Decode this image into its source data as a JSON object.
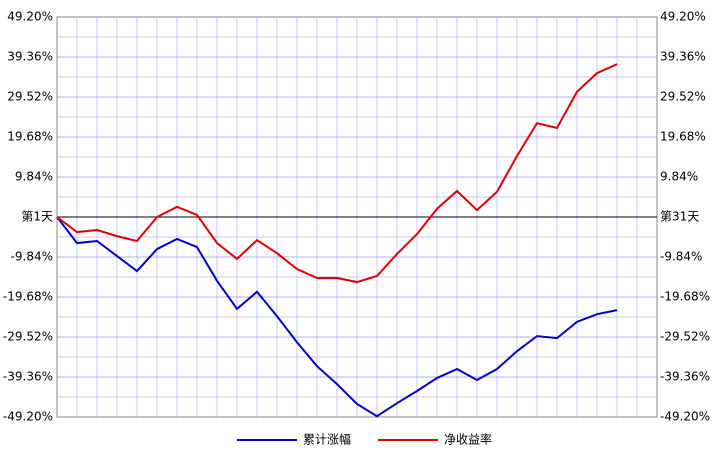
{
  "chart_data": {
    "type": "line",
    "categories": [
      "第1天",
      null,
      null,
      null,
      null,
      null,
      null,
      null,
      null,
      null,
      null,
      null,
      null,
      null,
      null,
      null,
      null,
      null,
      null,
      null,
      null,
      null,
      null,
      null,
      null,
      null,
      null,
      null,
      null,
      null,
      "第31天"
    ],
    "series": [
      {
        "name": "累计涨幅",
        "color": "#0000cc",
        "values": [
          0,
          -6.4,
          -5.9,
          -9.6,
          -13.3,
          -7.9,
          -5.4,
          -7.4,
          -15.7,
          -22.6,
          -18.4,
          -24.4,
          -30.8,
          -36.7,
          -41.1,
          -46.0,
          -49.0,
          -45.8,
          -42.8,
          -39.6,
          -37.4,
          -40.1,
          -37.4,
          -33.0,
          -29.3,
          -29.8,
          -25.8,
          -23.9,
          -22.9,
          null,
          null
        ]
      },
      {
        "name": "净收益率",
        "color": "#dd0000",
        "values": [
          0,
          -3.7,
          -3.2,
          -4.7,
          -5.9,
          0,
          2.5,
          0.5,
          -6.4,
          -10.3,
          -5.7,
          -8.9,
          -12.8,
          -15.0,
          -15.0,
          -16.0,
          -14.5,
          -9.1,
          -4.2,
          2.0,
          6.4,
          1.7,
          6.2,
          15.0,
          23.1,
          21.9,
          30.8,
          35.4,
          37.6,
          null,
          null
        ]
      }
    ],
    "ylim": [
      -49.2,
      49.2
    ],
    "yticks": [
      {
        "value": -49.2,
        "label": "-49.20%"
      },
      {
        "value": -39.36,
        "label": "-39.36%"
      },
      {
        "value": -29.52,
        "label": "-29.52%"
      },
      {
        "value": -19.68,
        "label": "-19.68%"
      },
      {
        "value": -9.84,
        "label": "-9.84%"
      },
      {
        "value": 9.84,
        "label": "9.84%"
      },
      {
        "value": 19.68,
        "label": "19.68%"
      },
      {
        "value": 29.52,
        "label": "29.52%"
      },
      {
        "value": 39.36,
        "label": "39.36%"
      },
      {
        "value": 49.2,
        "label": "49.20%"
      }
    ],
    "grid": true
  }
}
